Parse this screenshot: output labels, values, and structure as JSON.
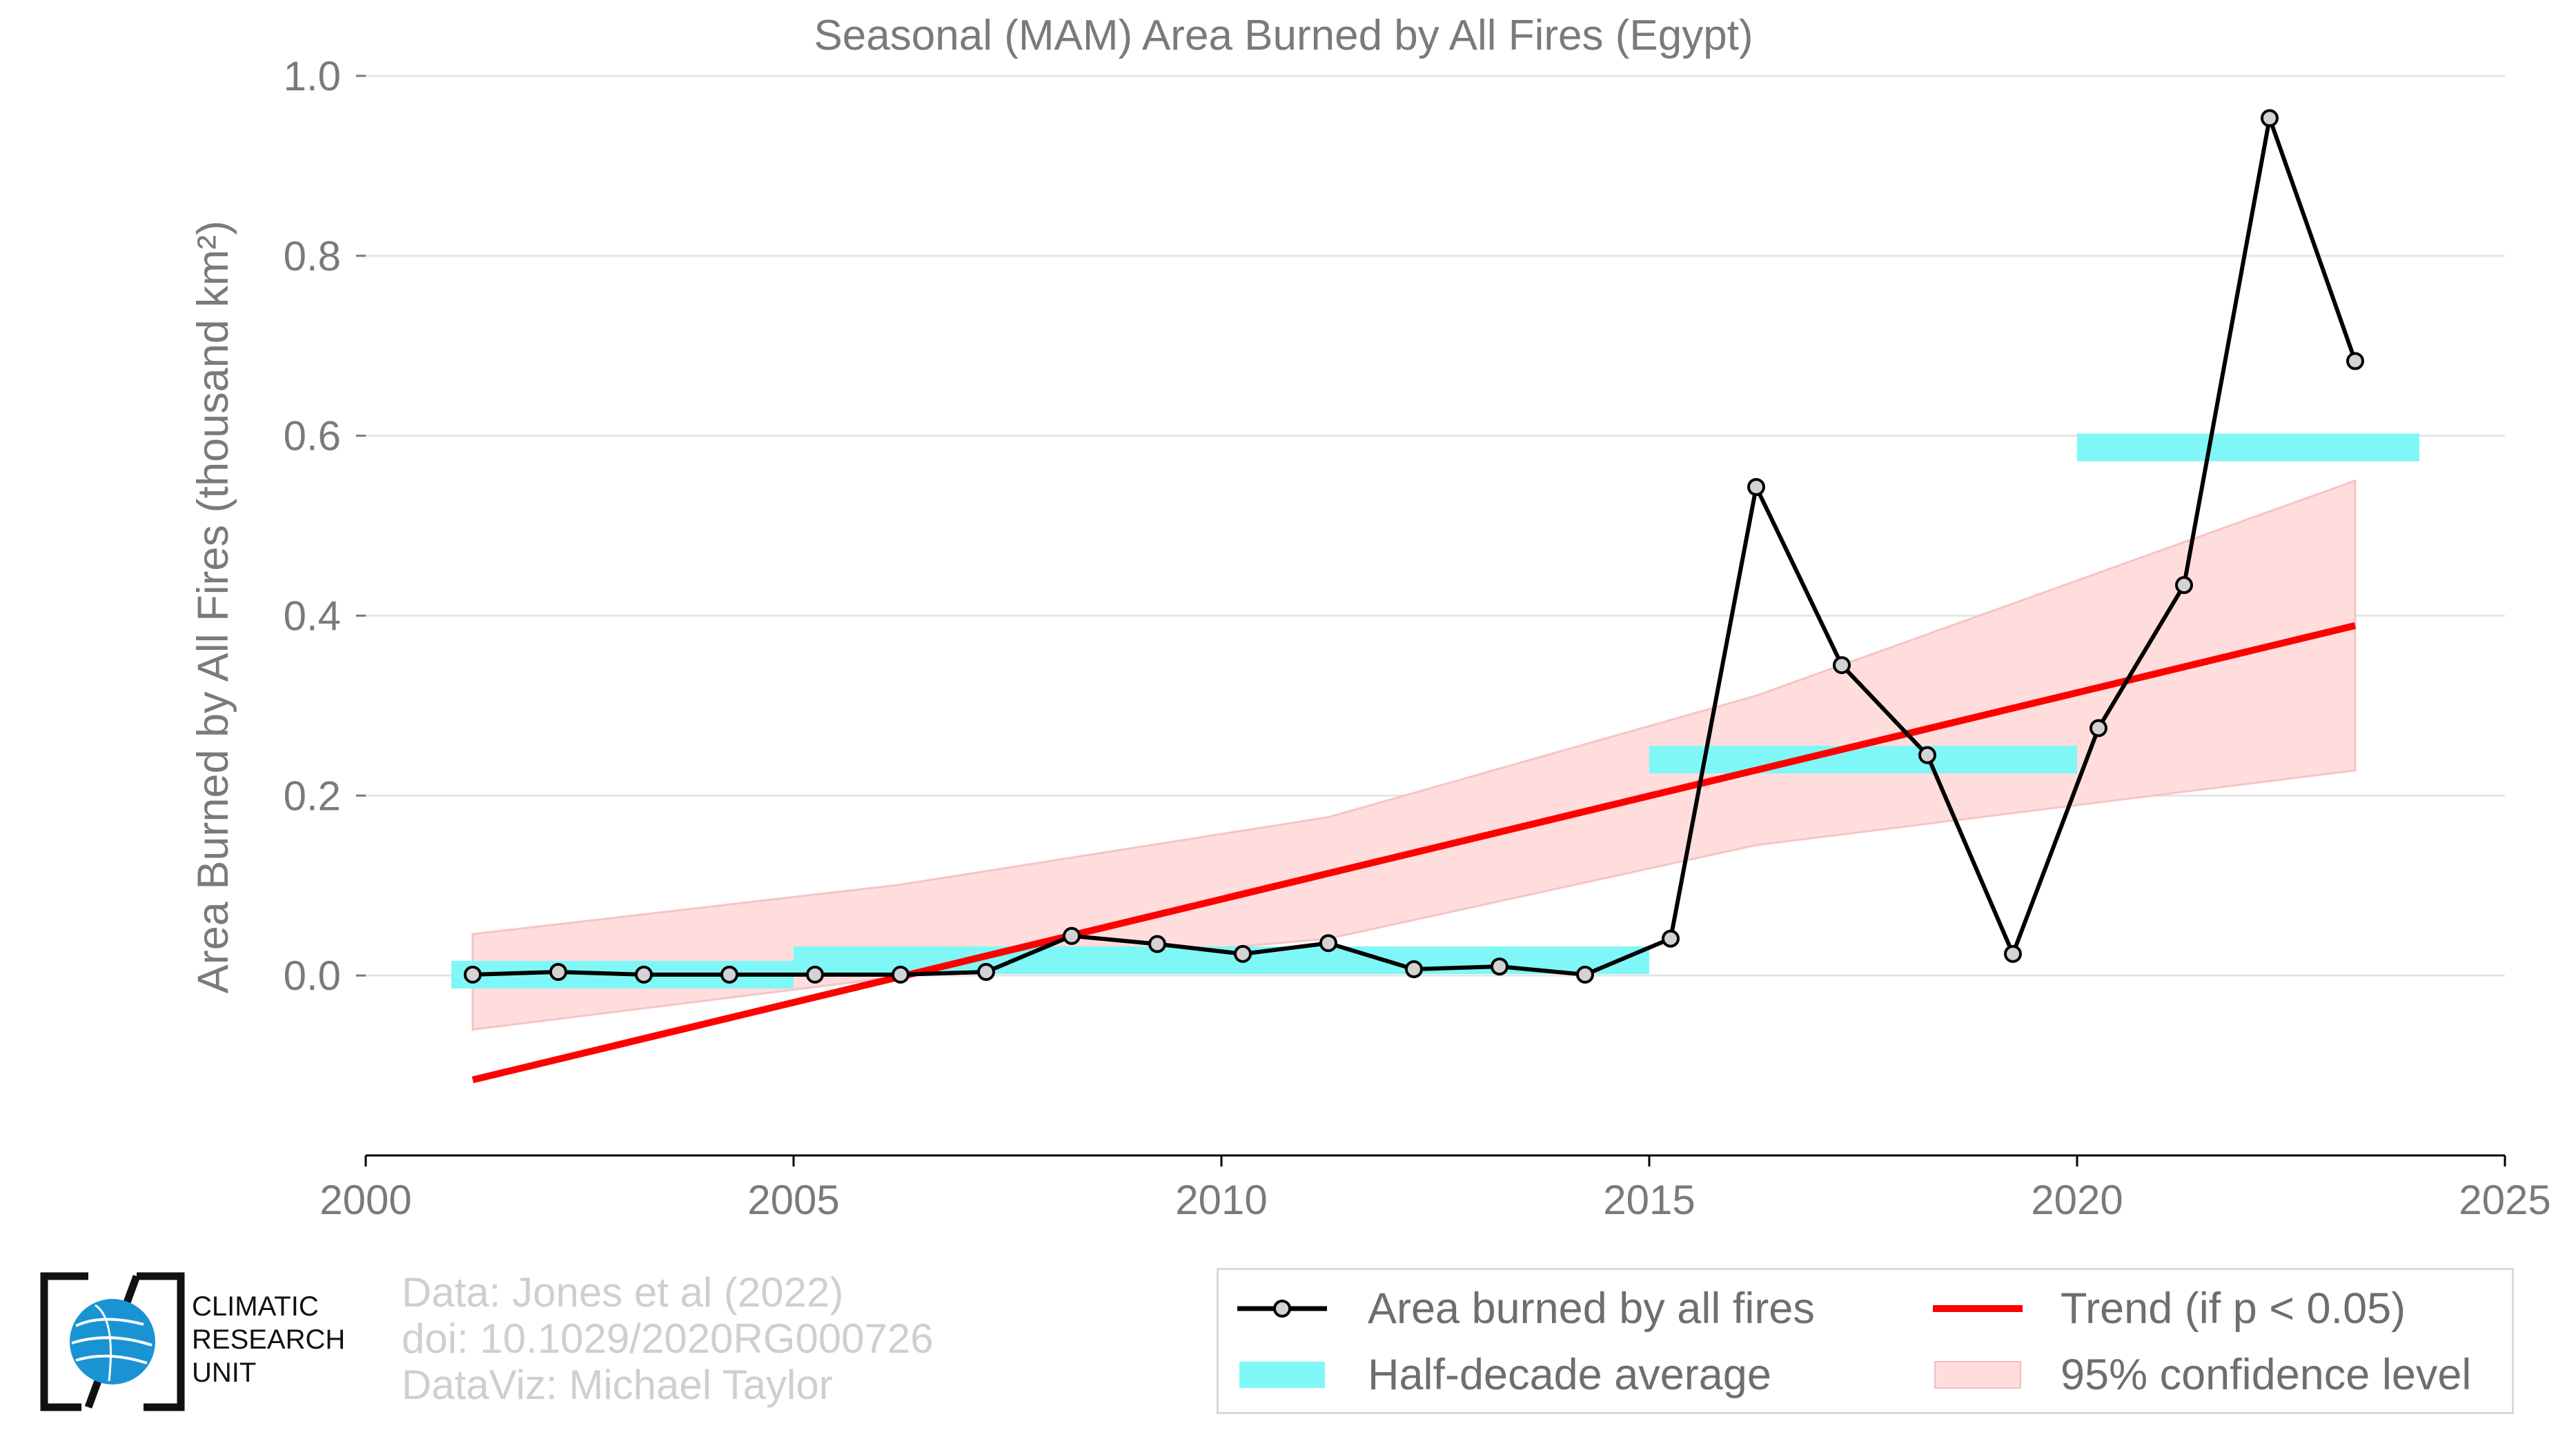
{
  "chart_data": {
    "type": "line",
    "title": "Seasonal (MAM) Area Burned by All Fires (Egypt)",
    "xlabel": "",
    "ylabel": "Area Burned by All Fires (thousand km²)",
    "xlim": [
      2000,
      2025
    ],
    "ylim": [
      -0.2,
      1.0
    ],
    "x_ticks": [
      "2000",
      "2005",
      "2010",
      "2015",
      "2020",
      "2025"
    ],
    "y_ticks": [
      "0.0",
      "0.2",
      "0.4",
      "0.6",
      "0.8",
      "1.0"
    ],
    "grid": "horizontal",
    "series": [
      {
        "name": "Area burned by all fires",
        "color": "#000000",
        "x": [
          2001.25,
          2002.25,
          2003.25,
          2004.25,
          2005.25,
          2006.25,
          2007.25,
          2008.25,
          2009.25,
          2010.25,
          2011.25,
          2012.25,
          2013.25,
          2014.25,
          2015.25,
          2016.25,
          2017.25,
          2018.25,
          2019.25,
          2020.25,
          2021.25,
          2022.25,
          2023.25
        ],
        "y": [
          0.001,
          0.004,
          0.001,
          0.001,
          0.001,
          0.001,
          0.004,
          0.044,
          0.035,
          0.024,
          0.036,
          0.007,
          0.01,
          0.001,
          0.041,
          0.543,
          0.345,
          0.245,
          0.024,
          0.275,
          0.434,
          0.953,
          0.683
        ]
      },
      {
        "name": "Half-decade average",
        "color": "#7ff7f7",
        "segments": [
          {
            "x0": 2001,
            "x1": 2005,
            "y": 0.001
          },
          {
            "x0": 2005,
            "x1": 2015,
            "y": 0.017
          },
          {
            "x0": 2015,
            "x1": 2020,
            "y": 0.24
          },
          {
            "x0": 2020,
            "x1": 2024,
            "y": 0.587
          }
        ]
      },
      {
        "name": "Trend (if p < 0.05)",
        "color": "#ff0000",
        "x": [
          2001.25,
          2023.25
        ],
        "y": [
          -0.116,
          0.389
        ]
      },
      {
        "name": "95% confidence level",
        "color": "#ffdddd",
        "x": [
          2001.25,
          2006.25,
          2011.25,
          2016.25,
          2023.25
        ],
        "upper": [
          0.046,
          0.101,
          0.176,
          0.311,
          0.55
        ],
        "lower": [
          -0.06,
          -0.001,
          0.041,
          0.145,
          0.228
        ]
      }
    ]
  },
  "legend": {
    "items": [
      {
        "label": "Area burned by all fires",
        "symbol": "line-marker"
      },
      {
        "label": "Trend (if p < 0.05)",
        "symbol": "red-line"
      },
      {
        "label": "Half-decade average",
        "symbol": "cyan-bar"
      },
      {
        "label": "95% confidence level",
        "symbol": "pink-patch"
      }
    ]
  },
  "credits": {
    "line1": "Data: Jones et al (2022)",
    "line2": "doi: 10.1029/2020RG000726",
    "line3": "DataViz: Michael Taylor"
  },
  "logo": {
    "line1": "CLIMATIC",
    "line2": "RESEARCH",
    "line3": "UNIT",
    "icon": "globe-logo-icon"
  },
  "colors": {
    "axis_text": "#7a7a7a",
    "grid": "#e5e5e5",
    "data_line": "#000000",
    "marker_fill": "#d3d3d3",
    "trend": "#ff0000",
    "half_decade": "#7ff7f7",
    "ci_fill": "#ffdddd"
  }
}
